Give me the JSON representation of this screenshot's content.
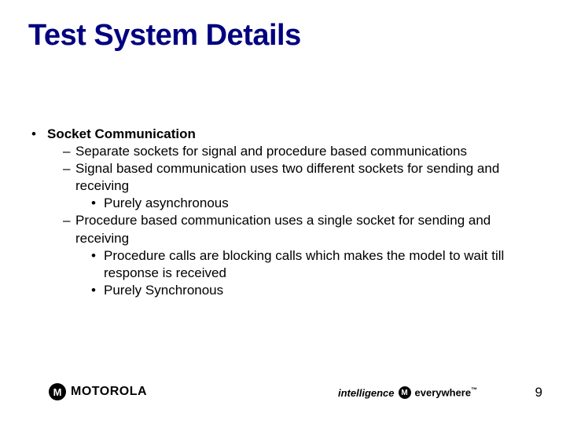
{
  "title": "Test System Details",
  "title_color": "#000080",
  "title_fontsize": 38,
  "content": {
    "heading": "Socket Communication",
    "sub1": "Separate sockets for signal and procedure based communications",
    "sub2": "Signal based communication uses two different sockets for sending and receiving",
    "sub2_a": "Purely asynchronous",
    "sub3": "Procedure based communication uses a single socket for sending and receiving",
    "sub3_a": "Procedure calls are blocking calls which makes the model to wait till response is received",
    "sub3_b": "Purely Synchronous"
  },
  "footer": {
    "brand_letter": "M",
    "brand_word": "MOTOROLA",
    "tagline_left": "intelligence",
    "tagline_right": "everywhere",
    "tm": "™"
  },
  "page_number": "9",
  "body_fontsize": 17,
  "body_color": "#000000",
  "background_color": "#ffffff"
}
